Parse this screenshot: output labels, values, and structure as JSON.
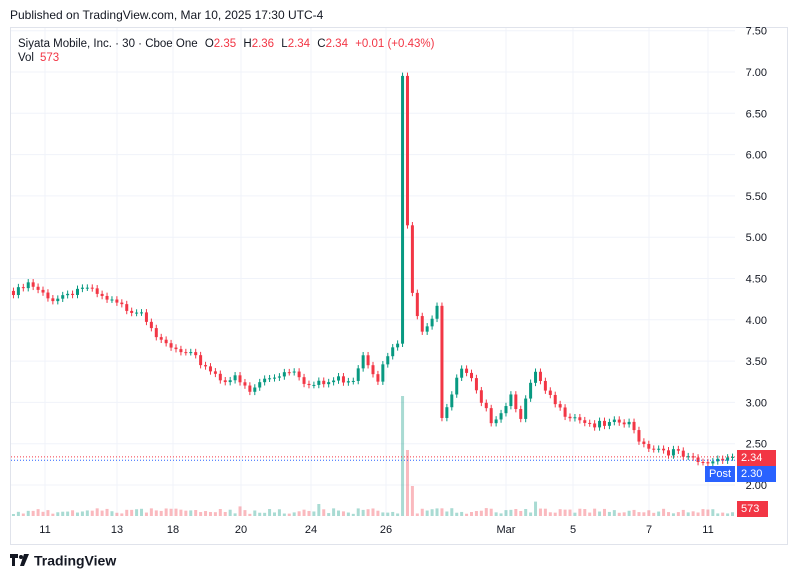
{
  "header": {
    "published": "Published on TradingView.com, Mar 10, 2025 17:30 UTC-4"
  },
  "legend": {
    "symbol": "Siyata Mobile, Inc. · 30 · Cboe One",
    "open_label": "O",
    "open": "2.35",
    "high_label": "H",
    "high": "2.36",
    "low_label": "L",
    "low": "2.34",
    "close_label": "C",
    "close": "2.34",
    "change": "+0.01 (+0.43%)",
    "vol_label": "Vol",
    "vol": "573"
  },
  "price_axis": {
    "labels": [
      "7.50",
      "7.00",
      "6.50",
      "6.00",
      "5.50",
      "5.00",
      "4.50",
      "4.00",
      "3.50",
      "3.00",
      "2.50",
      "2.00"
    ],
    "last_price": "2.34",
    "post_label": "Post",
    "post_price": "2.30",
    "volume_badge": "573"
  },
  "time_axis": {
    "labels": [
      "11",
      "13",
      "18",
      "20",
      "24",
      "26",
      "Mar",
      "5",
      "7",
      "11"
    ]
  },
  "footer": {
    "brand": "TradingView"
  },
  "colors": {
    "up": "#089981",
    "down": "#f23645",
    "post": "#2962ff",
    "grid": "#f0f3fa"
  },
  "chart_data": {
    "type": "candlestick",
    "title": "Siyata Mobile, Inc. · 30 · Cboe One",
    "ylim": [
      1.6,
      7.6
    ],
    "y_ticks": [
      2.0,
      2.5,
      3.0,
      3.5,
      4.0,
      4.5,
      5.0,
      5.5,
      6.0,
      6.5,
      7.0,
      7.5
    ],
    "x_labels": [
      "11",
      "13",
      "18",
      "20",
      "24",
      "26",
      "Mar",
      "5",
      "7",
      "11"
    ],
    "last_price": 2.34,
    "post_price": 2.3,
    "close_path": [
      [
        0,
        4.3
      ],
      [
        3,
        4.42
      ],
      [
        7,
        4.25
      ],
      [
        10,
        4.3
      ],
      [
        14,
        4.4
      ],
      [
        18,
        4.25
      ],
      [
        22,
        4.15
      ],
      [
        26,
        4.12
      ],
      [
        28,
        3.95
      ],
      [
        30,
        3.7
      ],
      [
        33,
        3.62
      ],
      [
        36,
        3.55
      ],
      [
        39,
        3.45
      ],
      [
        42,
        3.3
      ],
      [
        45,
        3.28
      ],
      [
        48,
        3.12
      ],
      [
        51,
        3.28
      ],
      [
        54,
        3.35
      ],
      [
        57,
        3.42
      ],
      [
        60,
        3.2
      ],
      [
        63,
        3.22
      ],
      [
        66,
        3.28
      ],
      [
        69,
        3.3
      ],
      [
        71,
        3.6
      ],
      [
        74,
        3.3
      ],
      [
        76,
        3.55
      ],
      [
        78,
        3.7
      ],
      [
        79,
        6.95
      ],
      [
        80,
        5.1
      ],
      [
        81,
        4.3
      ],
      [
        83,
        3.9
      ],
      [
        85,
        4.05
      ],
      [
        86,
        4.2
      ],
      [
        87,
        2.85
      ],
      [
        89,
        3.1
      ],
      [
        91,
        3.4
      ],
      [
        93,
        3.25
      ],
      [
        95,
        2.95
      ],
      [
        97,
        2.8
      ],
      [
        99,
        2.9
      ],
      [
        101,
        3.1
      ],
      [
        103,
        2.85
      ],
      [
        106,
        3.35
      ],
      [
        108,
        3.1
      ],
      [
        111,
        2.9
      ],
      [
        114,
        2.85
      ],
      [
        117,
        2.75
      ],
      [
        120,
        2.7
      ],
      [
        123,
        2.75
      ],
      [
        125,
        2.72
      ],
      [
        128,
        2.5
      ],
      [
        131,
        2.45
      ],
      [
        134,
        2.4
      ],
      [
        137,
        2.3
      ],
      [
        140,
        2.25
      ],
      [
        142,
        2.3
      ],
      [
        144,
        2.35
      ]
    ],
    "volume_spikes": [
      [
        79,
        1.0
      ],
      [
        80,
        0.55
      ],
      [
        81,
        0.25
      ],
      [
        62,
        0.1
      ],
      [
        106,
        0.12
      ],
      [
        46,
        0.08
      ],
      [
        26,
        0.06
      ]
    ]
  }
}
